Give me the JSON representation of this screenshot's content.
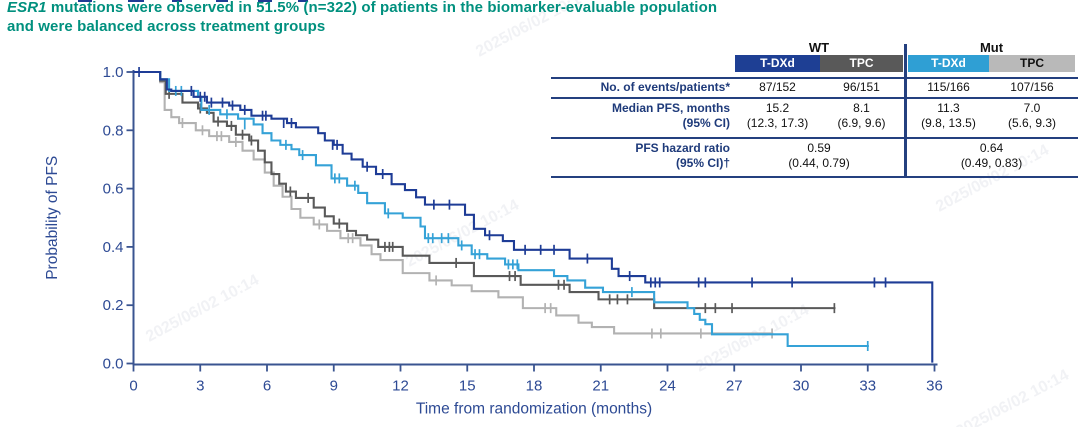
{
  "title": {
    "gene": "ESR1",
    "line1_rest": " mutations were observed in 51.5% (n=322) of patients in the biomarker-evaluable population",
    "line2": "and were balanced across treatment groups",
    "color": "#00907e"
  },
  "watermark": {
    "text": "2025/06/02 10:14"
  },
  "table": {
    "groups": [
      {
        "label": "WT"
      },
      {
        "label": "Mut"
      }
    ],
    "columns": [
      {
        "label": "T-DXd",
        "bg": "#1e3f94",
        "fg": "#ffffff"
      },
      {
        "label": "TPC",
        "bg": "#595959",
        "fg": "#ffffff"
      },
      {
        "label": "T-DXd",
        "bg": "#2f9fd4",
        "fg": "#ffffff"
      },
      {
        "label": "TPC",
        "bg": "#b9b9b9",
        "fg": "#111111"
      }
    ],
    "rows": [
      {
        "label": "No. of events/patients*",
        "values": [
          "87/152",
          "96/151",
          "115/166",
          "107/156"
        ]
      },
      {
        "label": "Median PFS, months",
        "label2": "(95% CI)",
        "values": [
          "15.2",
          "8.1",
          "11.3",
          "7.0"
        ],
        "values2": [
          "(12.3, 17.3)",
          "(6.9, 9.6)",
          "(9.8, 13.5)",
          "(5.6, 9.3)"
        ]
      },
      {
        "label": "PFS hazard ratio",
        "label2": "(95% CI)†",
        "span_values": [
          {
            "v": "0.59",
            "ci": "(0.44, 0.79)"
          },
          {
            "v": "0.64",
            "ci": "(0.49, 0.83)"
          }
        ]
      }
    ]
  },
  "chart_data": {
    "type": "line",
    "subtype": "kaplan-meier-step",
    "xlabel": "Time from randomization (months)",
    "ylabel": "Probability of PFS",
    "xlim": [
      0,
      36
    ],
    "ylim": [
      0.0,
      1.0
    ],
    "xticks": [
      0,
      3,
      6,
      9,
      12,
      15,
      18,
      21,
      24,
      27,
      30,
      33,
      36
    ],
    "yticks": [
      0.0,
      0.2,
      0.4,
      0.6,
      0.8,
      1.0
    ],
    "grid": false,
    "legend_position": "table-header-chips",
    "axis_color": "#3a5490",
    "label_color": "#2d4a94",
    "series": [
      {
        "id": "mut-tpc",
        "name": "Mut TPC",
        "color": "#b2b2b2",
        "end": 28.75,
        "steps": [
          [
            0,
            1.0
          ],
          [
            1.2,
            0.965
          ],
          [
            1.4,
            0.87
          ],
          [
            1.7,
            0.845
          ],
          [
            2.05,
            0.825
          ],
          [
            2.8,
            0.8
          ],
          [
            3.4,
            0.78
          ],
          [
            4.3,
            0.76
          ],
          [
            4.9,
            0.73
          ],
          [
            5.4,
            0.7
          ],
          [
            5.9,
            0.655
          ],
          [
            6.3,
            0.61
          ],
          [
            6.7,
            0.572
          ],
          [
            7.1,
            0.53
          ],
          [
            7.5,
            0.5
          ],
          [
            8.1,
            0.477
          ],
          [
            8.7,
            0.455
          ],
          [
            9.3,
            0.43
          ],
          [
            10.2,
            0.405
          ],
          [
            10.7,
            0.375
          ],
          [
            11.1,
            0.355
          ],
          [
            12.1,
            0.31
          ],
          [
            13.3,
            0.285
          ],
          [
            14.3,
            0.268
          ],
          [
            15.2,
            0.248
          ],
          [
            16.4,
            0.227
          ],
          [
            17.5,
            0.19
          ],
          [
            19.0,
            0.165
          ],
          [
            20.0,
            0.14
          ],
          [
            20.6,
            0.125
          ],
          [
            21.6,
            0.103
          ]
        ],
        "censors": [
          [
            2.2,
            0.825
          ],
          [
            3.1,
            0.8
          ],
          [
            3.75,
            0.78
          ],
          [
            3.95,
            0.78
          ],
          [
            4.6,
            0.76
          ],
          [
            8.35,
            0.477
          ],
          [
            9.65,
            0.43
          ],
          [
            9.85,
            0.43
          ],
          [
            13.6,
            0.285
          ],
          [
            18.5,
            0.19
          ],
          [
            18.75,
            0.19
          ],
          [
            23.3,
            0.103
          ],
          [
            23.7,
            0.103
          ],
          [
            25.5,
            0.103
          ],
          [
            28.7,
            0.103
          ]
        ]
      },
      {
        "id": "wt-tpc",
        "name": "WT TPC",
        "color": "#595959",
        "end": 31.55,
        "steps": [
          [
            0,
            1.0
          ],
          [
            1.2,
            0.97
          ],
          [
            1.45,
            0.925
          ],
          [
            2.2,
            0.895
          ],
          [
            2.9,
            0.875
          ],
          [
            3.3,
            0.86
          ],
          [
            3.6,
            0.83
          ],
          [
            4.2,
            0.815
          ],
          [
            4.6,
            0.785
          ],
          [
            5.2,
            0.765
          ],
          [
            5.6,
            0.73
          ],
          [
            5.9,
            0.69
          ],
          [
            6.2,
            0.65
          ],
          [
            6.55,
            0.617
          ],
          [
            6.85,
            0.59
          ],
          [
            7.3,
            0.568
          ],
          [
            8.1,
            0.535
          ],
          [
            8.6,
            0.505
          ],
          [
            9.0,
            0.48
          ],
          [
            9.6,
            0.455
          ],
          [
            10.0,
            0.44
          ],
          [
            10.5,
            0.425
          ],
          [
            11.0,
            0.4
          ],
          [
            12.1,
            0.37
          ],
          [
            13.3,
            0.345
          ],
          [
            15.3,
            0.3
          ],
          [
            17.4,
            0.27
          ],
          [
            19.6,
            0.245
          ],
          [
            20.9,
            0.22
          ],
          [
            23.4,
            0.19
          ]
        ],
        "censors": [
          [
            1.6,
            0.925
          ],
          [
            3.0,
            0.875
          ],
          [
            3.8,
            0.83
          ],
          [
            4.4,
            0.815
          ],
          [
            4.9,
            0.785
          ],
          [
            5.3,
            0.765
          ],
          [
            7.05,
            0.59
          ],
          [
            7.85,
            0.568
          ],
          [
            9.25,
            0.48
          ],
          [
            11.3,
            0.4
          ],
          [
            11.5,
            0.4
          ],
          [
            11.65,
            0.4
          ],
          [
            14.5,
            0.345
          ],
          [
            16.9,
            0.3
          ],
          [
            17.15,
            0.3
          ],
          [
            19.1,
            0.27
          ],
          [
            19.35,
            0.27
          ],
          [
            21.4,
            0.22
          ],
          [
            21.75,
            0.22
          ],
          [
            22.2,
            0.22
          ],
          [
            25.7,
            0.19
          ],
          [
            26.15,
            0.19
          ],
          [
            26.9,
            0.19
          ],
          [
            31.5,
            0.19
          ]
        ]
      },
      {
        "id": "mut-tdxd",
        "name": "Mut T-DXd",
        "color": "#35a2d7",
        "end": 33.05,
        "steps": [
          [
            0,
            1.0
          ],
          [
            1.2,
            0.975
          ],
          [
            1.6,
            0.935
          ],
          [
            2.9,
            0.915
          ],
          [
            3.05,
            0.87
          ],
          [
            3.9,
            0.855
          ],
          [
            4.7,
            0.84
          ],
          [
            5.4,
            0.82
          ],
          [
            5.8,
            0.79
          ],
          [
            6.2,
            0.765
          ],
          [
            6.6,
            0.75
          ],
          [
            7.1,
            0.735
          ],
          [
            7.45,
            0.715
          ],
          [
            8.2,
            0.68
          ],
          [
            8.9,
            0.635
          ],
          [
            9.6,
            0.61
          ],
          [
            10.1,
            0.585
          ],
          [
            10.5,
            0.55
          ],
          [
            11.3,
            0.515
          ],
          [
            12.1,
            0.5
          ],
          [
            12.9,
            0.47
          ],
          [
            13.1,
            0.43
          ],
          [
            14.6,
            0.405
          ],
          [
            15.2,
            0.375
          ],
          [
            15.9,
            0.36
          ],
          [
            16.7,
            0.34
          ],
          [
            17.3,
            0.32
          ],
          [
            18.9,
            0.3
          ],
          [
            19.5,
            0.285
          ],
          [
            20.3,
            0.26
          ],
          [
            21.1,
            0.245
          ],
          [
            23.4,
            0.21
          ],
          [
            24.9,
            0.19
          ],
          [
            25.2,
            0.17
          ],
          [
            25.45,
            0.15
          ],
          [
            25.7,
            0.135
          ],
          [
            26.0,
            0.1
          ],
          [
            29.4,
            0.06
          ]
        ],
        "censors": [
          [
            1.9,
            0.935
          ],
          [
            2.15,
            0.935
          ],
          [
            3.4,
            0.87
          ],
          [
            4.2,
            0.855
          ],
          [
            5.0,
            0.82
          ],
          [
            6.85,
            0.75
          ],
          [
            7.6,
            0.715
          ],
          [
            9.05,
            0.635
          ],
          [
            9.25,
            0.635
          ],
          [
            9.95,
            0.61
          ],
          [
            11.45,
            0.515
          ],
          [
            13.25,
            0.43
          ],
          [
            13.45,
            0.43
          ],
          [
            13.85,
            0.43
          ],
          [
            14.15,
            0.43
          ],
          [
            14.75,
            0.405
          ],
          [
            15.35,
            0.375
          ],
          [
            15.55,
            0.375
          ],
          [
            16.85,
            0.34
          ],
          [
            17.05,
            0.34
          ],
          [
            17.25,
            0.34
          ],
          [
            22.4,
            0.245
          ],
          [
            33.0,
            0.06
          ]
        ]
      },
      {
        "id": "wt-tdxd",
        "name": "WT T-DXd",
        "color": "#1e3c96",
        "end": 35.9,
        "drop_to_zero": true,
        "steps": [
          [
            0,
            1.0
          ],
          [
            1.2,
            0.975
          ],
          [
            1.5,
            0.94
          ],
          [
            1.7,
            0.935
          ],
          [
            2.7,
            0.915
          ],
          [
            3.3,
            0.895
          ],
          [
            4.3,
            0.885
          ],
          [
            4.8,
            0.87
          ],
          [
            5.3,
            0.85
          ],
          [
            6.2,
            0.84
          ],
          [
            6.9,
            0.825
          ],
          [
            7.3,
            0.81
          ],
          [
            8.3,
            0.79
          ],
          [
            8.6,
            0.765
          ],
          [
            9.0,
            0.75
          ],
          [
            9.4,
            0.72
          ],
          [
            9.8,
            0.7
          ],
          [
            10.3,
            0.675
          ],
          [
            10.9,
            0.65
          ],
          [
            11.6,
            0.615
          ],
          [
            12.2,
            0.595
          ],
          [
            12.7,
            0.57
          ],
          [
            13.1,
            0.545
          ],
          [
            14.9,
            0.51
          ],
          [
            15.3,
            0.462
          ],
          [
            15.8,
            0.44
          ],
          [
            16.6,
            0.42
          ],
          [
            17.1,
            0.39
          ],
          [
            19.6,
            0.36
          ],
          [
            21.5,
            0.325
          ],
          [
            21.8,
            0.3
          ],
          [
            23.0,
            0.278
          ],
          [
            35.9,
            0.003
          ]
        ],
        "censors": [
          [
            0.25,
            1.0
          ],
          [
            2.6,
            0.935
          ],
          [
            3.0,
            0.915
          ],
          [
            3.2,
            0.915
          ],
          [
            3.5,
            0.895
          ],
          [
            4.0,
            0.895
          ],
          [
            4.45,
            0.885
          ],
          [
            5.0,
            0.87
          ],
          [
            5.8,
            0.85
          ],
          [
            5.95,
            0.85
          ],
          [
            6.75,
            0.825
          ],
          [
            7.1,
            0.825
          ],
          [
            8.95,
            0.75
          ],
          [
            9.15,
            0.75
          ],
          [
            10.5,
            0.675
          ],
          [
            11.2,
            0.65
          ],
          [
            13.5,
            0.545
          ],
          [
            14.2,
            0.545
          ],
          [
            16.0,
            0.44
          ],
          [
            17.6,
            0.39
          ],
          [
            18.3,
            0.39
          ],
          [
            18.9,
            0.39
          ],
          [
            20.4,
            0.36
          ],
          [
            22.3,
            0.3
          ],
          [
            23.25,
            0.278
          ],
          [
            23.45,
            0.278
          ],
          [
            23.65,
            0.278
          ],
          [
            25.4,
            0.278
          ],
          [
            25.7,
            0.278
          ],
          [
            27.8,
            0.278
          ],
          [
            29.6,
            0.278
          ],
          [
            33.3,
            0.278
          ],
          [
            33.8,
            0.278
          ]
        ]
      }
    ]
  }
}
